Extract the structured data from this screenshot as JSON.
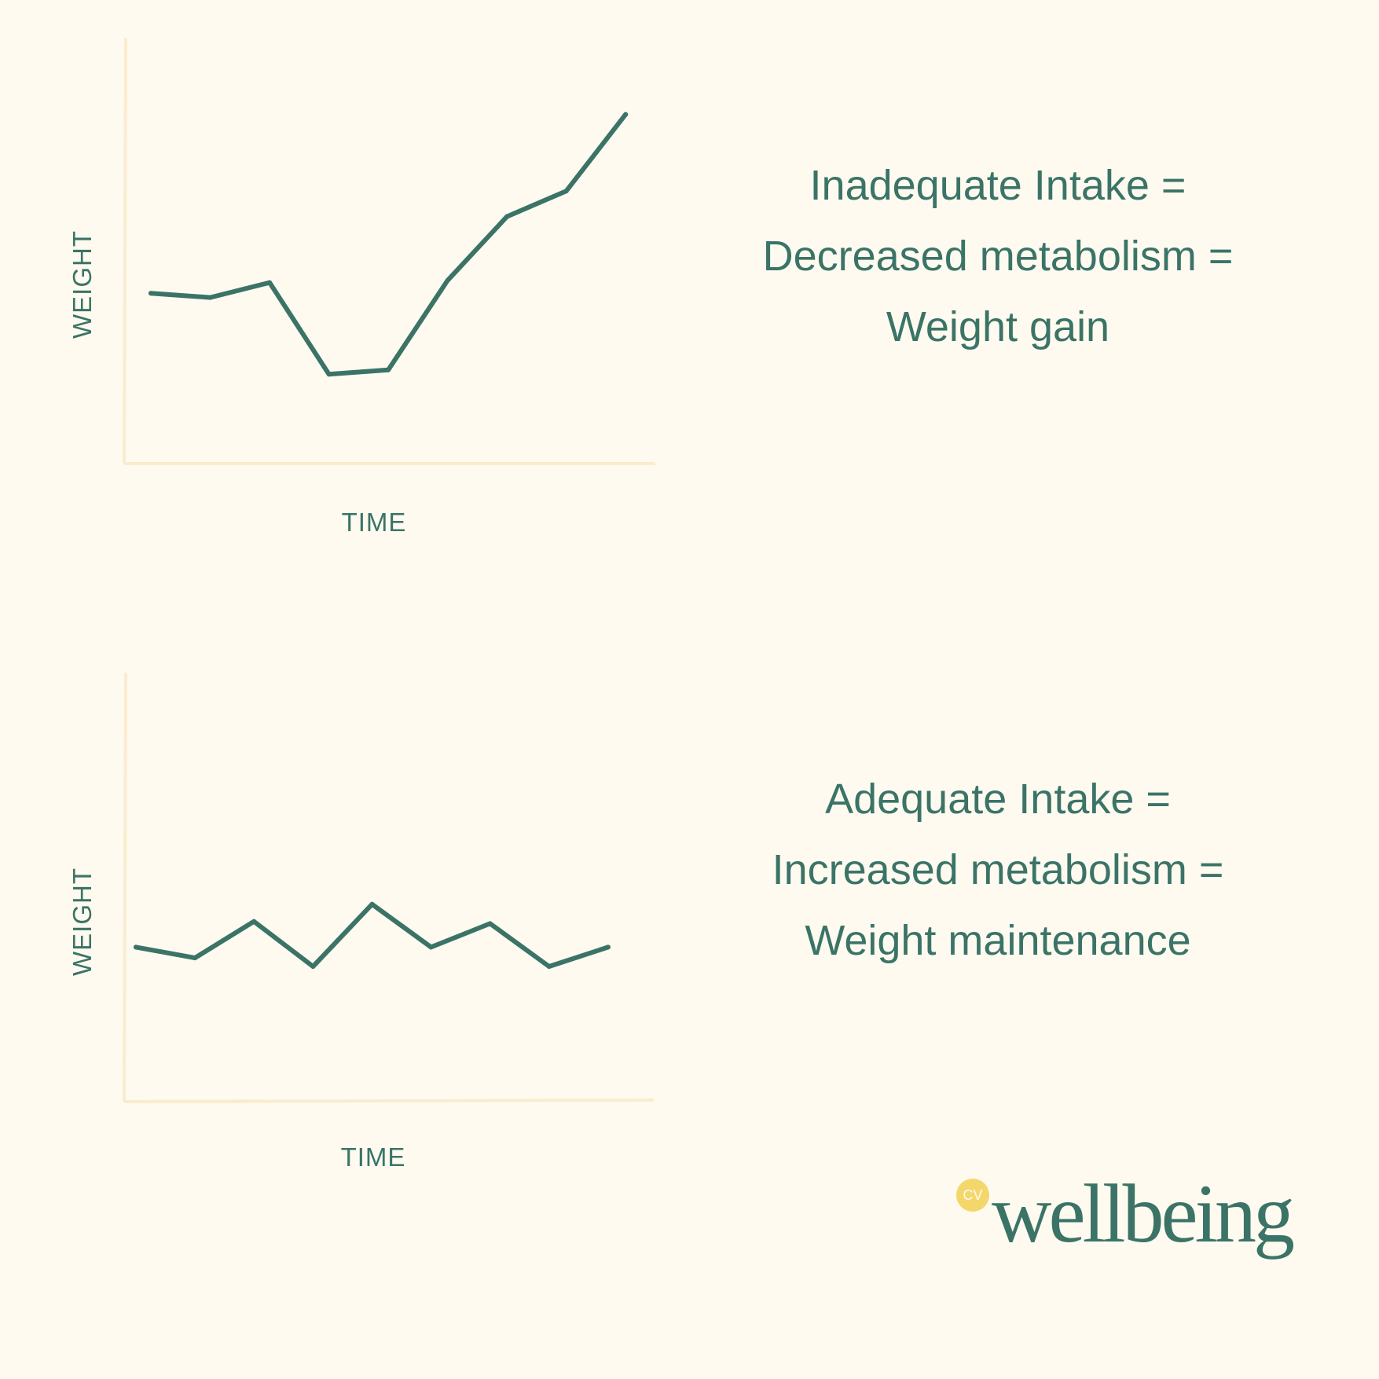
{
  "colors": {
    "background": "#fefaf0",
    "primary": "#3b7467",
    "axis": "#faeccc",
    "accent": "#f4d76a"
  },
  "chart_data": [
    {
      "type": "line",
      "title": "",
      "xlabel": "TIME",
      "ylabel": "WEIGHT",
      "x": [
        1,
        2,
        3,
        4,
        5,
        6,
        7,
        8,
        9
      ],
      "series": [
        {
          "name": "Weight",
          "values": [
            40,
            39,
            42.5,
            21,
            22,
            43,
            58,
            64,
            82
          ]
        }
      ],
      "xlim": [
        0.55,
        9.5
      ],
      "ylim": [
        0,
        100
      ],
      "grid": false,
      "legend": "none"
    },
    {
      "type": "line",
      "title": "",
      "xlabel": "TIME",
      "ylabel": "WEIGHT",
      "x": [
        1,
        2,
        3,
        4,
        5,
        6,
        7,
        8,
        9
      ],
      "series": [
        {
          "name": "Weight",
          "values": [
            36,
            33.5,
            42,
            31.5,
            46,
            36,
            41.5,
            31.5,
            36
          ]
        }
      ],
      "xlim": [
        0.8,
        9.8
      ],
      "ylim": [
        0,
        100
      ],
      "grid": false,
      "legend": "none"
    }
  ],
  "statements": [
    {
      "lines": [
        "Inadequate Intake =",
        "Decreased metabolism =",
        "Weight gain"
      ]
    },
    {
      "lines": [
        "Adequate Intake =",
        "Increased metabolism =",
        "Weight maintenance"
      ]
    }
  ],
  "logo": {
    "badge": "CV",
    "word": "wellbeing"
  }
}
